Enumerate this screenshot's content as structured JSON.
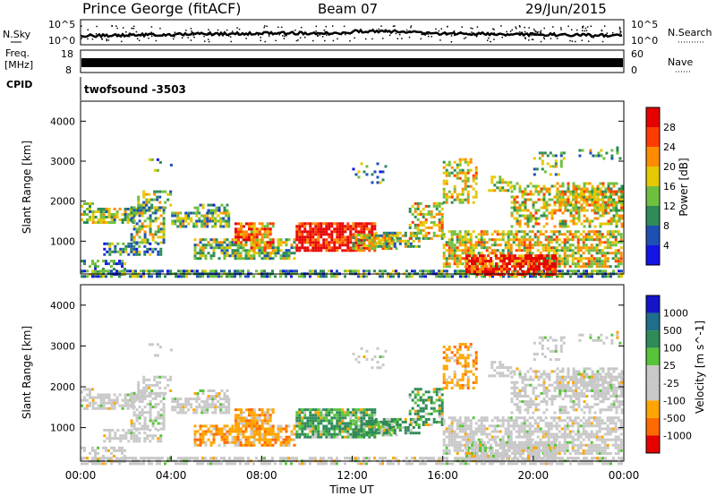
{
  "header": {
    "title": "Prince George (fitACF)",
    "beam": "Beam 07",
    "date": "29/Jun/2015"
  },
  "top_panels": {
    "nsky_label": "N.Sky",
    "nsky_ticks": [
      "10^5",
      "10^0"
    ],
    "nsearch_label": "N.Search",
    "nsearch_ticks": [
      "10^5",
      "10^0"
    ],
    "freq_label_1": "Freq.",
    "freq_label_2": "[MHz]",
    "freq_ticks": [
      "18",
      "8"
    ],
    "nave_label": "Nave",
    "nave_ticks": [
      "60",
      "0"
    ],
    "cpid_label": "CPID",
    "cpid_value": "twofsound -3503"
  },
  "colors": {
    "power_scale": [
      "#1414e6",
      "#1e50b4",
      "#2e8b57",
      "#6fbf3f",
      "#e6c800",
      "#ff8c00",
      "#ff3c00",
      "#e60000"
    ],
    "velocity_scale": [
      "#1414c8",
      "#1e6e8c",
      "#2e8b57",
      "#58c43a",
      "#c8c8c8",
      "#c8c8c8",
      "#ffa500",
      "#ff6a00",
      "#e60000"
    ]
  },
  "chart_data": [
    {
      "type": "heatmap",
      "name": "power",
      "ylabel": "Slant Range [km]",
      "xlabel": "",
      "xlim": [
        0,
        24
      ],
      "ylim": [
        180,
        4500
      ],
      "yticks": [
        1000,
        2000,
        3000,
        4000
      ],
      "ytick_labels": [
        "1000",
        "2000",
        "3000",
        "4000"
      ],
      "colorbar": {
        "label": "Power [dB]",
        "ticks": [
          "4",
          "8",
          "12",
          "16",
          "20",
          "24",
          "28"
        ],
        "range": [
          0,
          32
        ]
      }
    },
    {
      "type": "heatmap",
      "name": "velocity",
      "ylabel": "Slant Range [km]",
      "xlabel": "Time UT",
      "xlim": [
        0,
        24
      ],
      "ylim": [
        180,
        4500
      ],
      "yticks": [
        1000,
        2000,
        3000,
        4000
      ],
      "ytick_labels": [
        "1000",
        "2000",
        "3000",
        "4000"
      ],
      "xticks": [
        0,
        4,
        8,
        12,
        16,
        20,
        24
      ],
      "xtick_labels": [
        "00:00",
        "04:00",
        "08:00",
        "12:00",
        "16:00",
        "20:00",
        "00:00"
      ],
      "colorbar": {
        "label": "Velocity [m s^-1]",
        "ticks": [
          "1000",
          "500",
          "100",
          "25",
          "-25",
          "-100",
          "-500",
          "-1000"
        ]
      }
    }
  ]
}
